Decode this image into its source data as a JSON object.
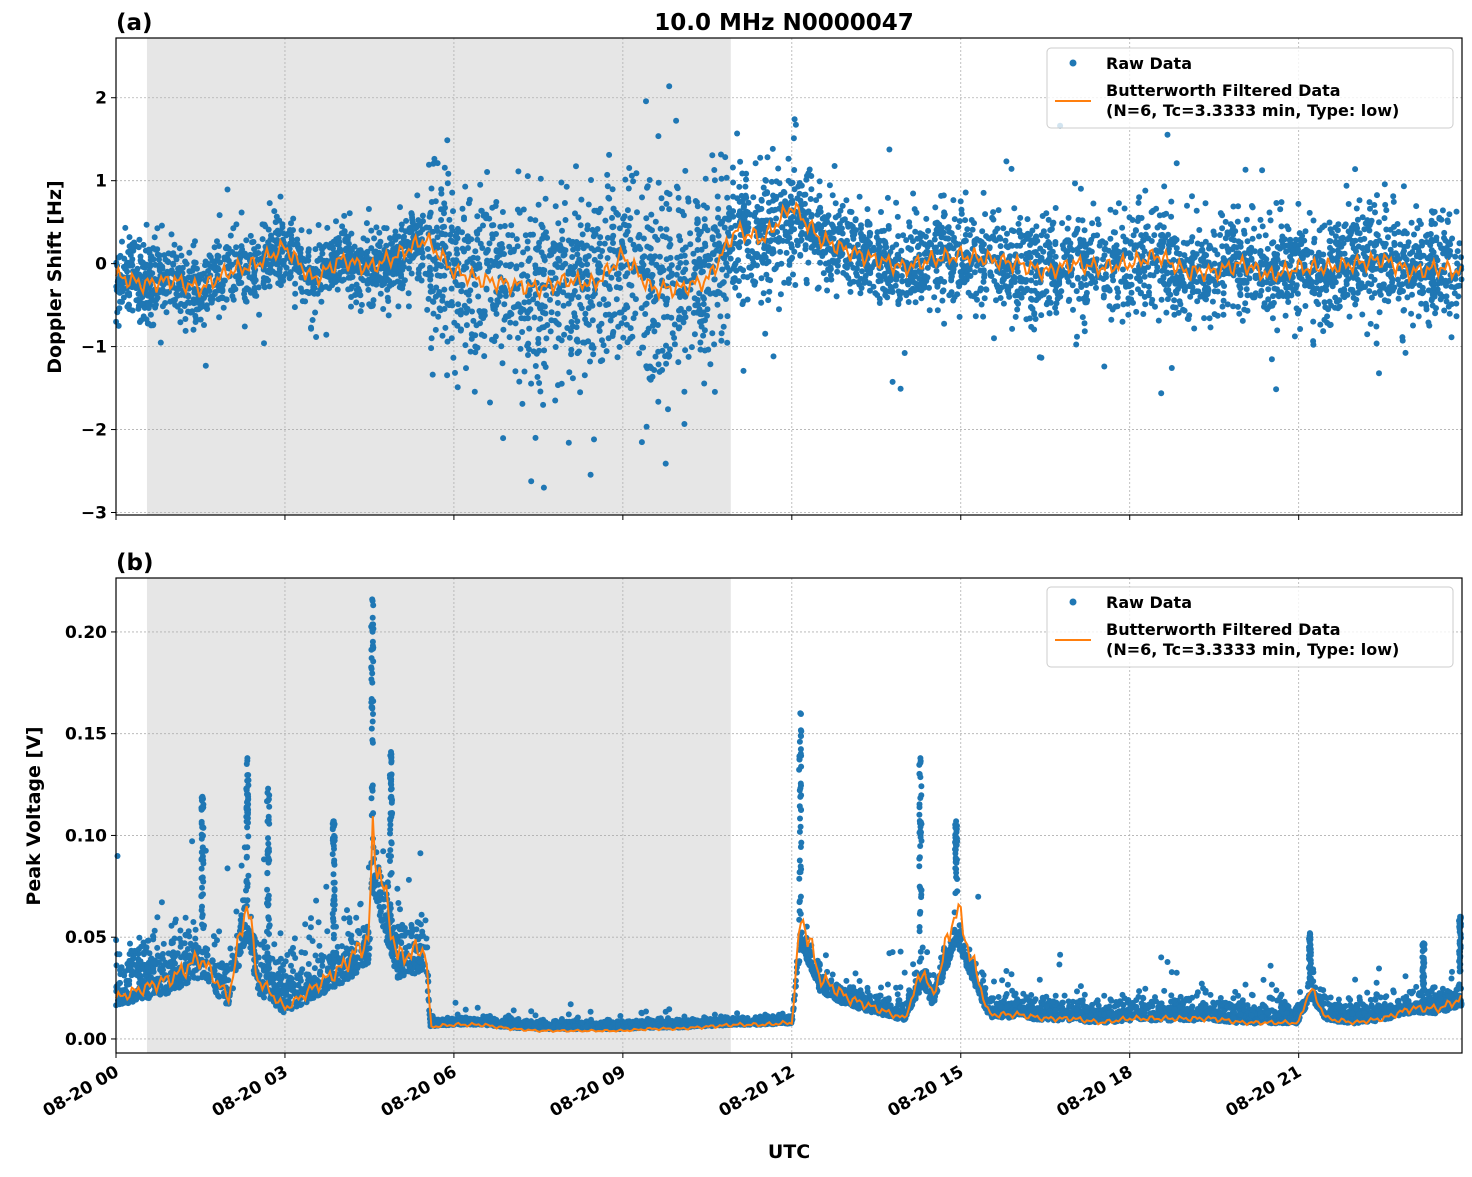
{
  "chart_data": [
    {
      "type": "scatter",
      "panel_label": "(a)",
      "title": "10.0 MHz N0000047",
      "xlabel": "",
      "ylabel": "Doppler Shift [Hz]",
      "xlim": [
        "08-20 00:00",
        "08-20 23:54"
      ],
      "ylim": [
        -3.03,
        2.72
      ],
      "yticks": [
        -3,
        -2,
        -1,
        0,
        1,
        2
      ],
      "ytick_labels": [
        "−3",
        "−2",
        "−1",
        "0",
        "1",
        "2"
      ],
      "grid": true,
      "legend": "top-right",
      "shaded_span": [
        "08-20 00:33",
        "08-20 10:55"
      ],
      "colors": {
        "raw": "#1f77b4",
        "filtered": "#ff7f0e",
        "shade": "#e6e6e6"
      },
      "series": [
        {
          "name": "Raw Data",
          "kind": "scatter",
          "spread": [
            {
              "from": "08-20 00:00",
              "to": "08-20 05:30",
              "std": 0.22
            },
            {
              "from": "08-20 05:30",
              "to": "08-20 10:55",
              "std": 0.55
            },
            {
              "from": "08-20 10:55",
              "to": "08-20 12:05",
              "std": 0.42
            },
            {
              "from": "08-20 12:05",
              "to": "08-20 14:30",
              "std": 0.25
            },
            {
              "from": "08-20 14:30",
              "to": "08-20 23:54",
              "std": 0.3
            }
          ]
        },
        {
          "name": "Butterworth Filtered Data\n(N=6, Tc=3.3333 min, Type: low)",
          "kind": "line",
          "x": [
            "08-20 00:00",
            "08-20 00:30",
            "08-20 01:00",
            "08-20 01:30",
            "08-20 02:00",
            "08-20 02:30",
            "08-20 03:00",
            "08-20 03:30",
            "08-20 04:00",
            "08-20 04:30",
            "08-20 05:00",
            "08-20 05:30",
            "08-20 06:00",
            "08-20 06:30",
            "08-20 07:00",
            "08-20 07:30",
            "08-20 08:00",
            "08-20 08:30",
            "08-20 09:00",
            "08-20 09:30",
            "08-20 10:00",
            "08-20 10:30",
            "08-20 11:00",
            "08-20 11:30",
            "08-20 12:00",
            "08-20 12:30",
            "08-20 13:00",
            "08-20 13:30",
            "08-20 14:00",
            "08-20 14:30",
            "08-20 15:00",
            "08-20 15:30",
            "08-20 16:00",
            "08-20 16:30",
            "08-20 17:00",
            "08-20 17:30",
            "08-20 18:00",
            "08-20 18:30",
            "08-20 19:00",
            "08-20 19:30",
            "08-20 20:00",
            "08-20 20:30",
            "08-20 21:00",
            "08-20 21:30",
            "08-20 22:00",
            "08-20 22:30",
            "08-20 23:00",
            "08-20 23:30",
            "08-20 23:54"
          ],
          "y": [
            -0.15,
            -0.25,
            -0.2,
            -0.3,
            -0.1,
            0.0,
            0.2,
            -0.2,
            0.05,
            -0.05,
            0.1,
            0.3,
            -0.1,
            -0.2,
            -0.25,
            -0.3,
            -0.2,
            -0.25,
            0.1,
            -0.3,
            -0.3,
            -0.2,
            0.4,
            0.3,
            0.7,
            0.3,
            0.15,
            0.05,
            -0.05,
            0.05,
            0.1,
            0.05,
            0.0,
            -0.1,
            0.0,
            -0.05,
            0.0,
            0.1,
            -0.1,
            -0.1,
            0.0,
            -0.15,
            -0.05,
            -0.05,
            0.0,
            0.05,
            -0.1,
            -0.05,
            -0.1
          ]
        }
      ]
    },
    {
      "type": "scatter",
      "panel_label": "(b)",
      "xlabel": "UTC",
      "ylabel": "Peak Voltage [V]",
      "xlim": [
        "08-20 00:00",
        "08-20 23:54"
      ],
      "ylim": [
        -0.0069,
        0.2265
      ],
      "yticks": [
        0,
        0.05,
        0.1,
        0.15,
        0.2
      ],
      "ytick_labels": [
        "0.00",
        "0.05",
        "0.10",
        "0.15",
        "0.20"
      ],
      "xticks": [
        "08-20 00:00",
        "08-20 03:00",
        "08-20 06:00",
        "08-20 09:00",
        "08-20 12:00",
        "08-20 15:00",
        "08-20 18:00",
        "08-20 21:00"
      ],
      "xtick_labels": [
        "08-20 00",
        "08-20 03",
        "08-20 06",
        "08-20 09",
        "08-20 12",
        "08-20 15",
        "08-20 18",
        "08-20 21"
      ],
      "grid": true,
      "legend": "top-right",
      "shaded_span": [
        "08-20 00:33",
        "08-20 10:55"
      ],
      "colors": {
        "raw": "#1f77b4",
        "filtered": "#ff7f0e",
        "shade": "#e6e6e6"
      },
      "series": [
        {
          "name": "Raw Data",
          "kind": "scatter",
          "spread": [
            {
              "from": "08-20 00:00",
              "to": "08-20 05:33",
              "std": 0.013
            },
            {
              "from": "08-20 05:33",
              "to": "08-20 12:05",
              "std": 0.0018
            },
            {
              "from": "08-20 12:05",
              "to": "08-20 23:54",
              "std": 0.005
            }
          ],
          "peaks": [
            {
              "x": "08-20 01:32",
              "y": 0.119
            },
            {
              "x": "08-20 02:20",
              "y": 0.138
            },
            {
              "x": "08-20 02:42",
              "y": 0.123
            },
            {
              "x": "08-20 03:52",
              "y": 0.107
            },
            {
              "x": "08-20 04:33",
              "y": 0.216
            },
            {
              "x": "08-20 04:53",
              "y": 0.141
            },
            {
              "x": "08-20 12:09",
              "y": 0.16
            },
            {
              "x": "08-20 14:17",
              "y": 0.138
            },
            {
              "x": "08-20 14:55",
              "y": 0.107
            },
            {
              "x": "08-20 21:12",
              "y": 0.052
            },
            {
              "x": "08-20 23:13",
              "y": 0.047
            },
            {
              "x": "08-20 23:52",
              "y": 0.06
            }
          ]
        },
        {
          "name": "Butterworth Filtered Data\n(N=6, Tc=3.3333 min, Type: low)",
          "kind": "line",
          "x": [
            "08-20 00:00",
            "08-20 00:30",
            "08-20 01:00",
            "08-20 01:30",
            "08-20 02:00",
            "08-20 02:20",
            "08-20 02:30",
            "08-20 03:00",
            "08-20 03:30",
            "08-20 04:00",
            "08-20 04:30",
            "08-20 04:33",
            "08-20 05:00",
            "08-20 05:30",
            "08-20 05:35",
            "08-20 06:00",
            "08-20 06:30",
            "08-20 07:00",
            "08-20 07:30",
            "08-20 08:00",
            "08-20 08:30",
            "08-20 09:00",
            "08-20 09:30",
            "08-20 10:00",
            "08-20 10:30",
            "08-20 11:00",
            "08-20 11:30",
            "08-20 12:00",
            "08-20 12:10",
            "08-20 12:30",
            "08-20 13:00",
            "08-20 13:30",
            "08-20 14:00",
            "08-20 14:20",
            "08-20 14:30",
            "08-20 14:55",
            "08-20 15:30",
            "08-20 16:00",
            "08-20 16:30",
            "08-20 17:00",
            "08-20 17:30",
            "08-20 18:00",
            "08-20 18:30",
            "08-20 19:00",
            "08-20 19:30",
            "08-20 20:00",
            "08-20 20:30",
            "08-20 21:00",
            "08-20 21:12",
            "08-20 21:30",
            "08-20 22:00",
            "08-20 22:30",
            "08-20 23:00",
            "08-20 23:30",
            "08-20 23:54"
          ],
          "y": [
            0.02,
            0.025,
            0.03,
            0.04,
            0.02,
            0.07,
            0.03,
            0.015,
            0.025,
            0.035,
            0.05,
            0.1,
            0.04,
            0.045,
            0.006,
            0.007,
            0.007,
            0.005,
            0.004,
            0.004,
            0.004,
            0.004,
            0.005,
            0.005,
            0.006,
            0.007,
            0.007,
            0.008,
            0.062,
            0.03,
            0.02,
            0.015,
            0.01,
            0.035,
            0.02,
            0.065,
            0.012,
            0.012,
            0.01,
            0.01,
            0.008,
            0.01,
            0.01,
            0.01,
            0.01,
            0.008,
            0.008,
            0.008,
            0.025,
            0.01,
            0.008,
            0.01,
            0.015,
            0.015,
            0.02
          ]
        }
      ]
    }
  ]
}
